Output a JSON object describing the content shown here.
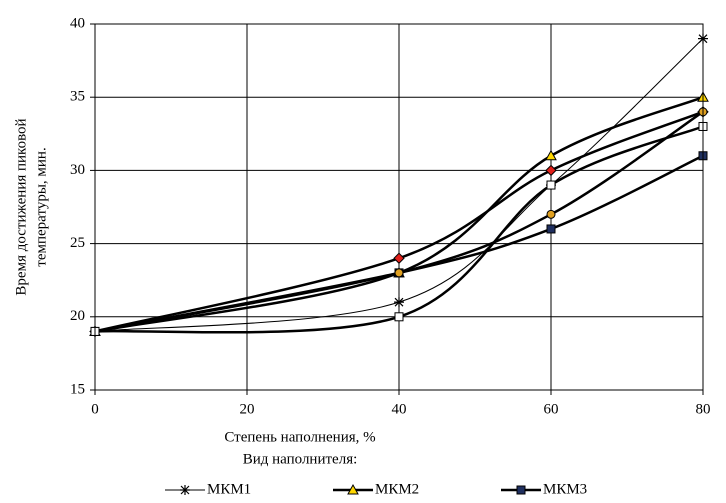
{
  "chart_data": {
    "type": "line",
    "ylabel": [
      "Время достижения пиковой",
      "температуры, мин."
    ],
    "xlabel": "Степень наполнения, %",
    "legend_title": "Вид наполнителя:",
    "x": [
      0,
      40,
      60,
      80
    ],
    "xlim": [
      0,
      80
    ],
    "xticks": [
      0,
      20,
      40,
      60,
      80
    ],
    "ylim": [
      15,
      40
    ],
    "yticks": [
      15,
      20,
      25,
      30,
      35,
      40
    ],
    "grid": true,
    "smooth": true,
    "legend": "bottom",
    "series": [
      {
        "name": "МКМ1",
        "color": "#000000",
        "marker": "star",
        "marker_fill": "#000000",
        "width": 1,
        "values": [
          19,
          21,
          29,
          39
        ]
      },
      {
        "name": "МКМ2",
        "color": "#000000",
        "marker": "triangle",
        "marker_fill": "#ffd700",
        "width": 2.5,
        "values": [
          19,
          23,
          31,
          35
        ]
      },
      {
        "name": "МКМ3",
        "color": "#000000",
        "marker": "square",
        "marker_fill": "#1f2f5f",
        "width": 2.5,
        "values": [
          19,
          23,
          26,
          31
        ]
      },
      {
        "color": "#000000",
        "marker": "diamond",
        "marker_fill": "#e0201a",
        "width": 2.5,
        "values": [
          19,
          24,
          30,
          34
        ]
      },
      {
        "color": "#000000",
        "marker": "circle",
        "marker_fill": "#e0a020",
        "width": 2.5,
        "values": [
          19,
          23,
          27,
          34
        ]
      },
      {
        "color": "#000000",
        "marker": "square",
        "marker_fill": "#ffffff",
        "width": 2.5,
        "values": [
          19,
          20,
          29,
          33
        ]
      }
    ]
  }
}
